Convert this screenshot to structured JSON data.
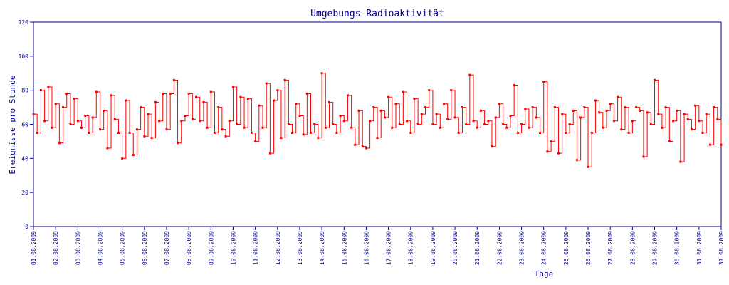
{
  "chart_data": {
    "type": "line",
    "title": "Umgebungs-Radioaktivität",
    "xlabel": "Tage",
    "ylabel": "Ereignisse pro Stunde",
    "ylim": [
      0,
      120
    ],
    "yticks": [
      0,
      20,
      40,
      60,
      80,
      100,
      120
    ],
    "xtick_labels": [
      "01.08.2009",
      "02.08.2009",
      "03.08.2009",
      "04.08.2009",
      "05.08.2009",
      "06.08.2009",
      "07.08.2009",
      "08.08.2009",
      "09.08.2009",
      "10.08.2009",
      "11.08.2009",
      "12.08.2009",
      "13.08.2009",
      "14.08.2009",
      "15.08.2009",
      "16.08.2009",
      "17.08.2009",
      "18.08.2009",
      "19.08.2009",
      "20.08.2009",
      "21.08.2009",
      "22.08.2009",
      "23.08.2009",
      "24.08.2009",
      "25.08.2009",
      "26.08.2009",
      "27.08.2009",
      "28.08.2009",
      "29.08.2009",
      "30.08.2009",
      "31.08.2009",
      "31.08.2009"
    ],
    "grid": false,
    "colors": {
      "series": "#ff0000",
      "axes": "#00008b"
    },
    "series": [
      {
        "days": [
          {
            "date": "01.08.2009",
            "values": [
              66,
              55,
              80,
              62,
              82,
              58
            ]
          },
          {
            "date": "02.08.2009",
            "values": [
              72,
              49,
              70,
              78,
              60,
              75
            ]
          },
          {
            "date": "03.08.2009",
            "values": [
              62,
              58,
              65,
              55,
              64,
              79
            ]
          },
          {
            "date": "04.08.2009",
            "values": [
              57,
              68,
              46,
              77,
              63,
              55
            ]
          },
          {
            "date": "05.08.2009",
            "values": [
              40,
              74,
              55,
              42,
              57,
              70
            ]
          },
          {
            "date": "06.08.2009",
            "values": [
              53,
              66,
              52,
              73,
              62,
              78
            ]
          },
          {
            "date": "07.08.2009",
            "values": [
              57,
              78,
              86,
              49,
              62,
              65
            ]
          },
          {
            "date": "08.08.2009",
            "values": [
              78,
              63,
              76,
              62,
              73,
              58
            ]
          },
          {
            "date": "09.08.2009",
            "values": [
              79,
              55,
              70,
              57,
              53,
              62
            ]
          },
          {
            "date": "10.08.2009",
            "values": [
              82,
              60,
              76,
              58,
              75,
              55
            ]
          },
          {
            "date": "11.08.2009",
            "values": [
              50,
              71,
              58,
              84,
              43,
              74
            ]
          },
          {
            "date": "12.08.2009",
            "values": [
              80,
              52,
              86,
              60,
              55,
              72
            ]
          },
          {
            "date": "13.08.2009",
            "values": [
              65,
              54,
              78,
              55,
              60,
              52
            ]
          },
          {
            "date": "14.08.2009",
            "values": [
              90,
              58,
              73,
              60,
              55,
              65
            ]
          },
          {
            "date": "15.08.2009",
            "values": [
              62,
              77,
              58,
              48,
              68,
              47
            ]
          },
          {
            "date": "16.08.2009",
            "values": [
              46,
              62,
              70,
              52,
              68,
              64
            ]
          },
          {
            "date": "17.08.2009",
            "values": [
              76,
              58,
              72,
              60,
              79,
              62
            ]
          },
          {
            "date": "18.08.2009",
            "values": [
              55,
              75,
              60,
              66,
              70,
              80
            ]
          },
          {
            "date": "19.08.2009",
            "values": [
              60,
              66,
              58,
              72,
              63,
              80
            ]
          },
          {
            "date": "20.08.2009",
            "values": [
              64,
              55,
              70,
              60,
              89,
              62
            ]
          },
          {
            "date": "21.08.2009",
            "values": [
              58,
              68,
              60,
              62,
              47,
              64
            ]
          },
          {
            "date": "22.08.2009",
            "values": [
              72,
              60,
              58,
              65,
              83,
              55
            ]
          },
          {
            "date": "23.08.2009",
            "values": [
              60,
              69,
              58,
              70,
              64,
              55
            ]
          },
          {
            "date": "24.08.2009",
            "values": [
              85,
              44,
              50,
              70,
              43,
              66
            ]
          },
          {
            "date": "25.08.2009",
            "values": [
              55,
              60,
              68,
              39,
              64,
              70
            ]
          },
          {
            "date": "26.08.2009",
            "values": [
              35,
              55,
              74,
              67,
              58,
              68
            ]
          },
          {
            "date": "27.08.2009",
            "values": [
              72,
              62,
              76,
              57,
              70,
              55
            ]
          },
          {
            "date": "28.08.2009",
            "values": [
              62,
              70,
              68,
              41,
              67,
              60
            ]
          },
          {
            "date": "29.08.2009",
            "values": [
              86,
              66,
              58,
              70,
              50,
              62
            ]
          },
          {
            "date": "30.08.2009",
            "values": [
              68,
              38,
              66,
              63,
              57,
              71
            ]
          },
          {
            "date": "31.08.2009",
            "values": [
              62,
              55,
              66,
              48,
              70,
              63
            ]
          }
        ],
        "last_value": 48
      }
    ]
  }
}
